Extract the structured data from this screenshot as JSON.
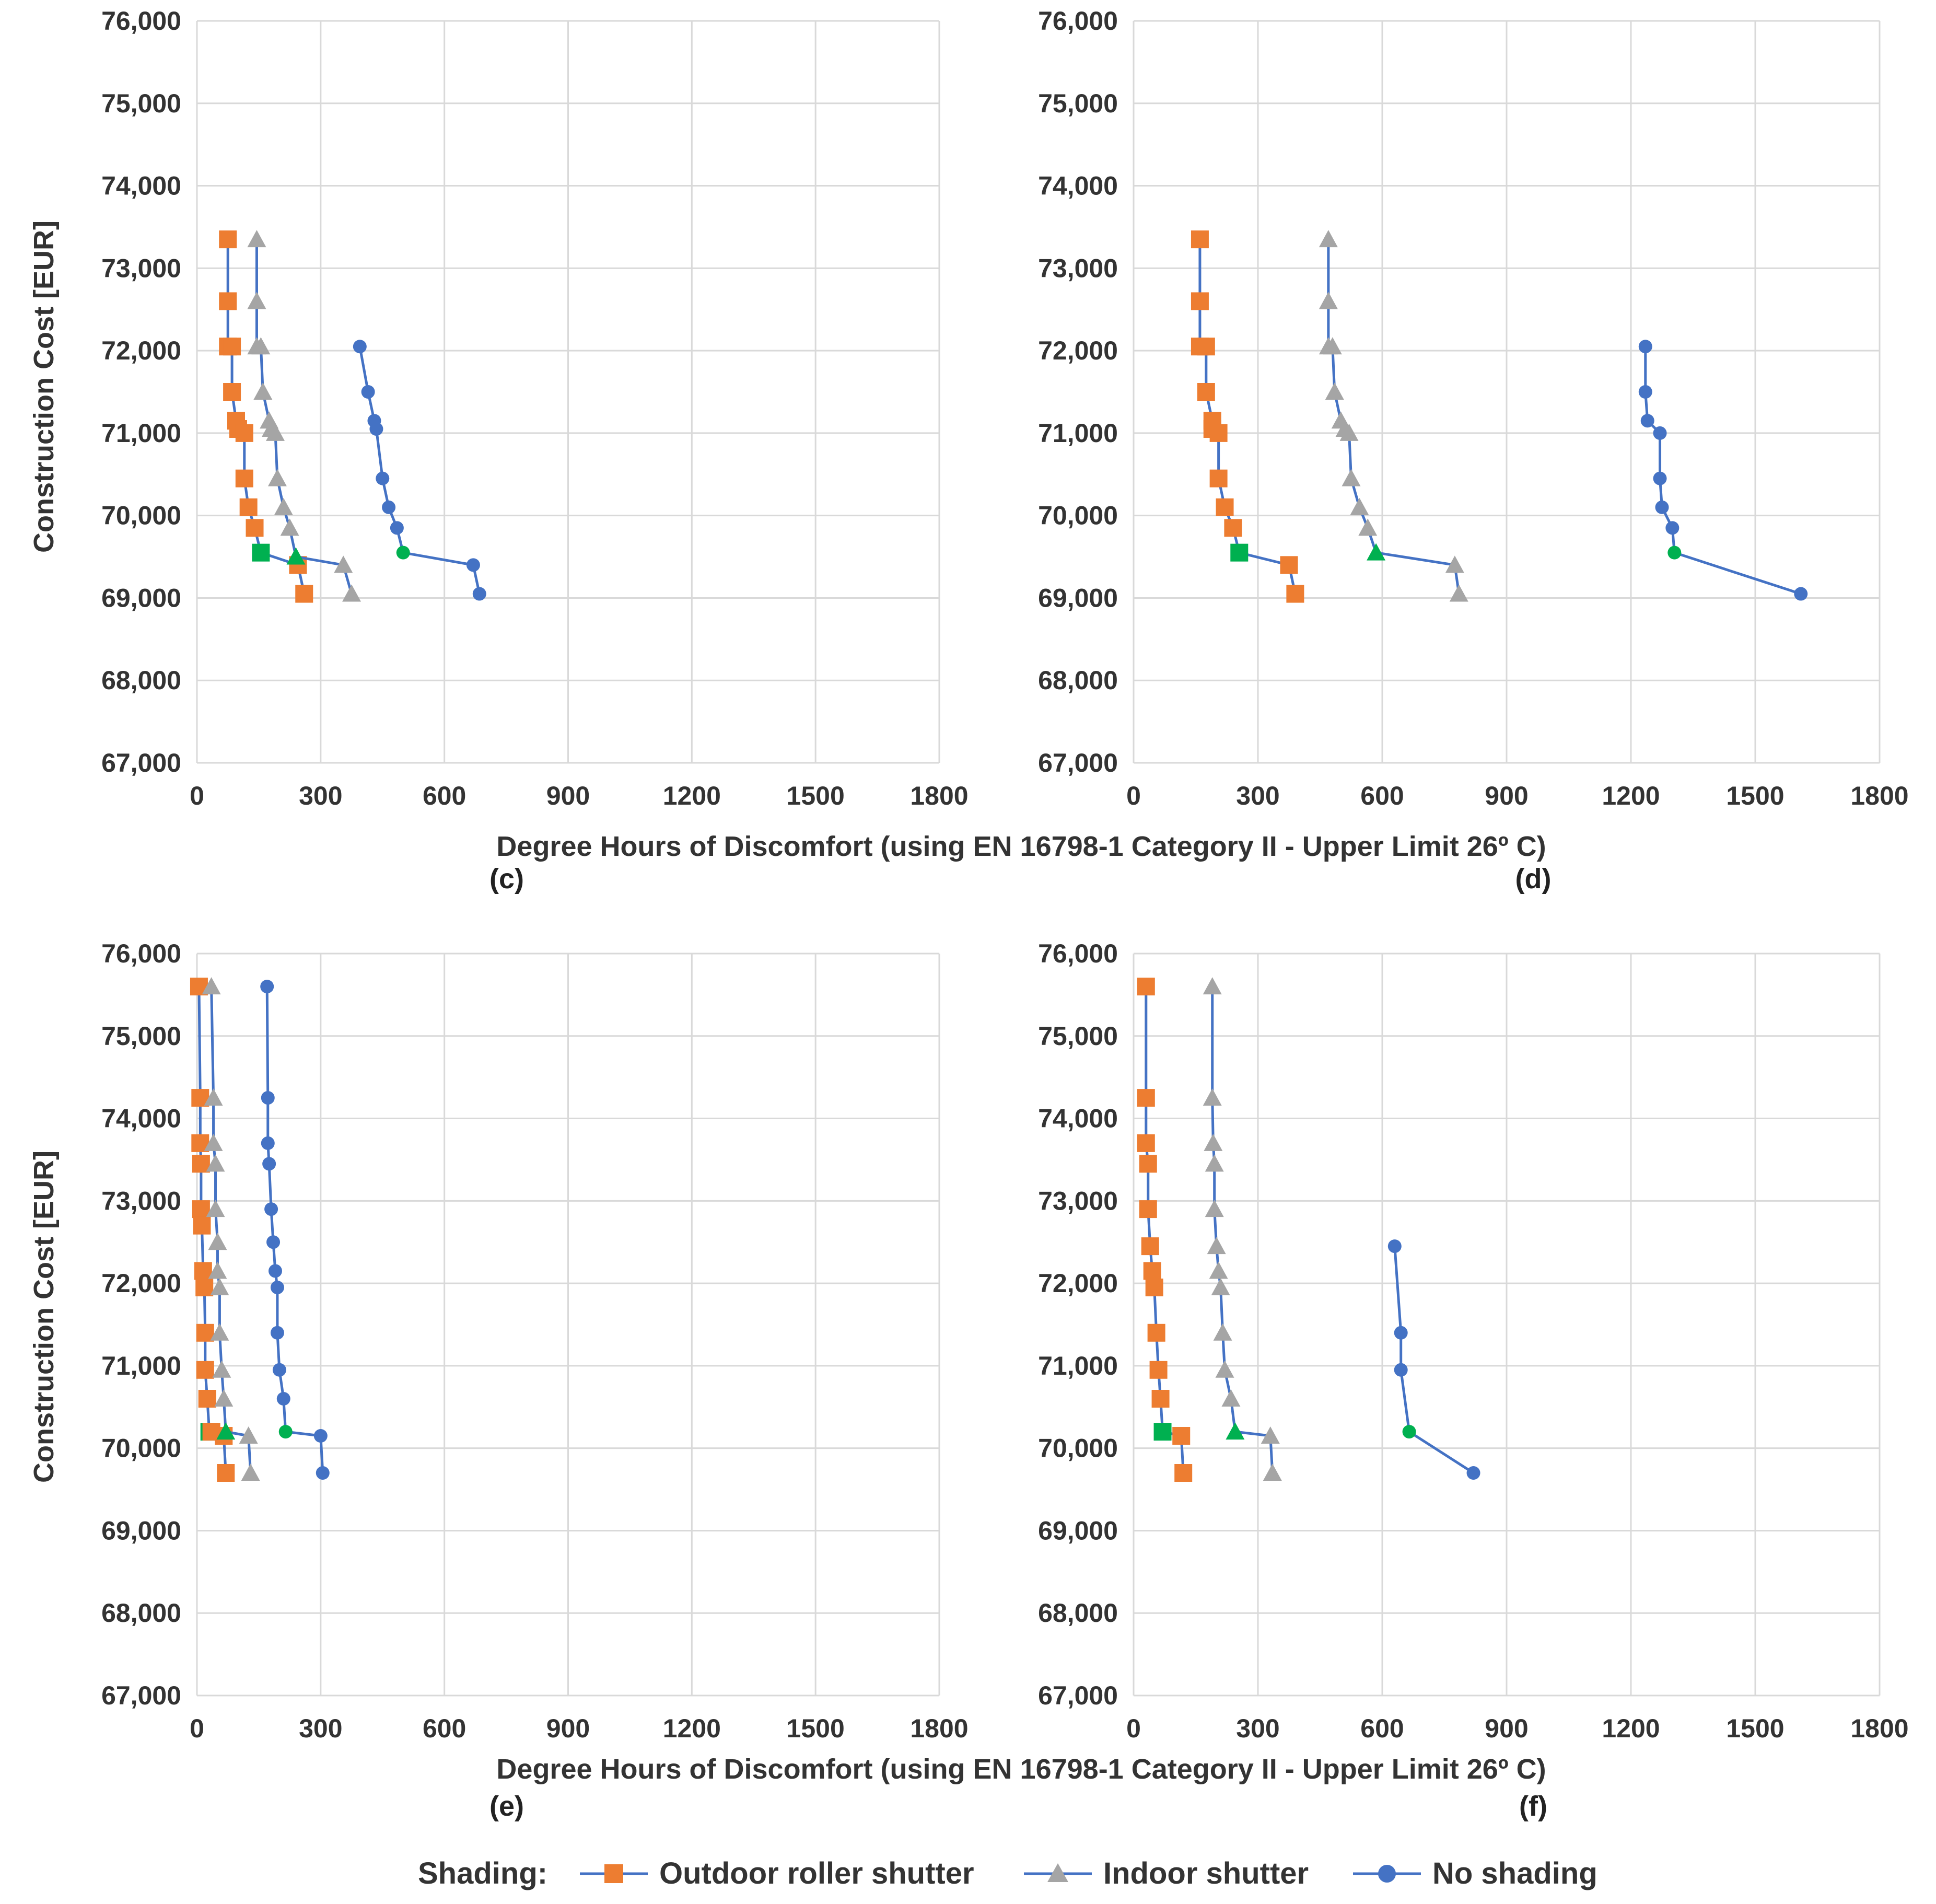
{
  "colors": {
    "line": "#4472c4",
    "outdoor": "#ed7d31",
    "indoor": "#a5a5a5",
    "noshade": "#4472c4",
    "optimum": "#00b050",
    "grid": "#d9d9d9",
    "axis_text": "#333333"
  },
  "figure": {
    "xlabel_top": "Degree Hours of Discomfort (using EN 16798-1 Category II - Upper Limit 26º C)",
    "xlabel_bottom": "Degree Hours of Discomfort (using EN 16798-1 Category II - Upper Limit 26º C)",
    "ylabel_top": "Construction Cost [EUR]",
    "ylabel_bottom": "Construction Cost [EUR]"
  },
  "legend": {
    "title": "Shading:",
    "items": [
      {
        "label": "Outdoor roller shutter",
        "marker": "square"
      },
      {
        "label": "Indoor shutter",
        "marker": "triangle"
      },
      {
        "label": "No shading",
        "marker": "circle"
      }
    ]
  },
  "x_ticks": [
    "0",
    "300",
    "600",
    "900",
    "1200",
    "1500",
    "1800"
  ],
  "y_ticks": [
    "76,000",
    "75,000",
    "74,000",
    "73,000",
    "72,000",
    "71,000",
    "70,000",
    "69,000",
    "68,000",
    "67,000"
  ],
  "chart_data": [
    {
      "type": "line",
      "panel": "(c)",
      "xlim": [
        0,
        1800
      ],
      "ylim": [
        67000,
        76000
      ],
      "series": [
        {
          "name": "Outdoor roller shutter",
          "marker": "square",
          "x": [
            75,
            75,
            75,
            85,
            85,
            95,
            100,
            115,
            115,
            125,
            140,
            155,
            245,
            260
          ],
          "y": [
            73350,
            72600,
            72050,
            72050,
            71500,
            71150,
            71050,
            71000,
            70450,
            70100,
            69850,
            69550,
            69400,
            69050
          ],
          "optimum_index": 11
        },
        {
          "name": "Indoor shutter",
          "marker": "triangle",
          "x": [
            145,
            145,
            145,
            155,
            160,
            175,
            180,
            190,
            195,
            210,
            225,
            240,
            355,
            375
          ],
          "y": [
            73350,
            72600,
            72050,
            72050,
            71500,
            71150,
            71050,
            71000,
            70450,
            70100,
            69850,
            69500,
            69400,
            69050
          ],
          "optimum_index": 11
        },
        {
          "name": "No shading",
          "marker": "circle",
          "x": [
            395,
            415,
            430,
            435,
            450,
            465,
            485,
            500,
            670,
            685
          ],
          "y": [
            72050,
            71500,
            71150,
            71050,
            70450,
            70100,
            69850,
            69550,
            69400,
            69050
          ],
          "optimum_index": 7
        }
      ]
    },
    {
      "type": "line",
      "panel": "(d)",
      "xlim": [
        0,
        1800
      ],
      "ylim": [
        67000,
        76000
      ],
      "series": [
        {
          "name": "Outdoor roller shutter",
          "marker": "square",
          "x": [
            160,
            160,
            160,
            175,
            175,
            190,
            190,
            205,
            205,
            220,
            240,
            255,
            375,
            390
          ],
          "y": [
            73350,
            72600,
            72050,
            72050,
            71500,
            71150,
            71050,
            71000,
            70450,
            70100,
            69850,
            69550,
            69400,
            69050
          ],
          "optimum_index": 11
        },
        {
          "name": "Indoor shutter",
          "marker": "triangle",
          "x": [
            470,
            470,
            470,
            480,
            485,
            500,
            510,
            520,
            525,
            545,
            565,
            585,
            775,
            785
          ],
          "y": [
            73350,
            72600,
            72050,
            72050,
            71500,
            71150,
            71050,
            71000,
            70450,
            70100,
            69850,
            69550,
            69400,
            69050
          ],
          "optimum_index": 11
        },
        {
          "name": "No shading",
          "marker": "circle",
          "x": [
            1235,
            1235,
            1240,
            1270,
            1270,
            1275,
            1300,
            1305,
            1610
          ],
          "y": [
            72050,
            71500,
            71150,
            71000,
            70450,
            70100,
            69850,
            69550,
            69050
          ],
          "optimum_index": 7
        }
      ]
    },
    {
      "type": "line",
      "panel": "(e)",
      "xlim": [
        0,
        1800
      ],
      "ylim": [
        67000,
        76000
      ],
      "series": [
        {
          "name": "Outdoor roller shutter",
          "marker": "square",
          "x": [
            5,
            8,
            8,
            10,
            10,
            12,
            15,
            18,
            20,
            20,
            25,
            30,
            35,
            65,
            70
          ],
          "y": [
            75600,
            74250,
            73700,
            73450,
            72900,
            72700,
            72150,
            71950,
            71400,
            70950,
            70600,
            70200,
            70200,
            70150,
            69700
          ],
          "optimum_index": 11
        },
        {
          "name": "Indoor shutter",
          "marker": "triangle",
          "x": [
            35,
            40,
            40,
            45,
            45,
            50,
            50,
            55,
            55,
            60,
            65,
            70,
            125,
            130
          ],
          "y": [
            75600,
            74250,
            73700,
            73450,
            72900,
            72500,
            72150,
            71950,
            71400,
            70950,
            70600,
            70200,
            70150,
            69700
          ],
          "optimum_index": 11
        },
        {
          "name": "No shading",
          "marker": "circle",
          "x": [
            170,
            172,
            172,
            175,
            180,
            185,
            190,
            195,
            195,
            200,
            210,
            215,
            300,
            305
          ],
          "y": [
            75600,
            74250,
            73700,
            73450,
            72900,
            72500,
            72150,
            71950,
            71400,
            70950,
            70600,
            70200,
            70150,
            69700
          ],
          "optimum_index": 11
        }
      ]
    },
    {
      "type": "line",
      "panel": "(f)",
      "xlim": [
        0,
        1800
      ],
      "ylim": [
        67000,
        76000
      ],
      "series": [
        {
          "name": "Outdoor roller shutter",
          "marker": "square",
          "x": [
            30,
            30,
            30,
            35,
            35,
            40,
            45,
            50,
            55,
            60,
            65,
            70,
            115,
            120
          ],
          "y": [
            75600,
            74250,
            73700,
            73450,
            72900,
            72450,
            72150,
            71950,
            71400,
            70950,
            70600,
            70200,
            70150,
            69700
          ],
          "optimum_index": 11
        },
        {
          "name": "Indoor shutter",
          "marker": "triangle",
          "x": [
            190,
            190,
            192,
            195,
            195,
            200,
            205,
            210,
            215,
            220,
            235,
            245,
            330,
            335
          ],
          "y": [
            75600,
            74250,
            73700,
            73450,
            72900,
            72450,
            72150,
            71950,
            71400,
            70950,
            70600,
            70200,
            70150,
            69700
          ],
          "optimum_index": 11
        },
        {
          "name": "No shading",
          "marker": "circle",
          "x": [
            630,
            645,
            645,
            665,
            820
          ],
          "y": [
            72450,
            71400,
            70950,
            70200,
            69700
          ],
          "optimum_index": 3
        }
      ]
    }
  ]
}
